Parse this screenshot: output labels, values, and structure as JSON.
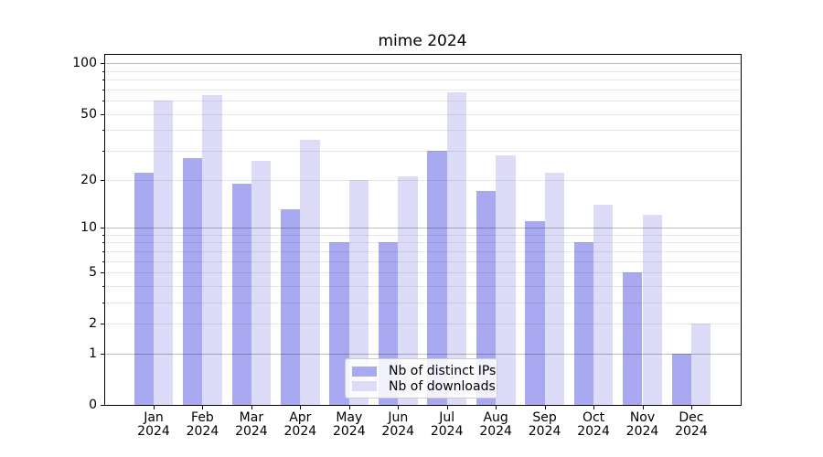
{
  "title": "mime 2024",
  "chart_data": {
    "type": "bar",
    "title": "mime 2024",
    "categories": [
      "Jan",
      "Feb",
      "Mar",
      "Apr",
      "May",
      "Jun",
      "Jul",
      "Aug",
      "Sep",
      "Oct",
      "Nov",
      "Dec"
    ],
    "year_label": "2024",
    "series": [
      {
        "name": "Nb of distinct IPs",
        "color": "#a9a9f2",
        "values": [
          22,
          27,
          19,
          13,
          8,
          8,
          30,
          17,
          11,
          8,
          5,
          1
        ]
      },
      {
        "name": "Nb of downloads",
        "color": "#dcdcf8",
        "values": [
          60,
          65,
          26,
          35,
          20,
          21,
          67,
          28,
          22,
          14,
          12,
          2
        ]
      }
    ],
    "xlabel": "",
    "ylabel": "",
    "yscale": "log10(1+v)",
    "ylim": [
      0,
      110
    ],
    "y_tick_values": [
      0,
      1,
      2,
      5,
      10,
      20,
      50,
      100
    ],
    "y_major_gridlines": [
      1,
      10,
      100
    ],
    "y_minor_gridlines": [
      2,
      3,
      4,
      5,
      6,
      7,
      8,
      9,
      20,
      30,
      40,
      50,
      60,
      70,
      80,
      90
    ],
    "grid": true,
    "legend_position": "inside-bottom-center"
  },
  "legend": {
    "items": [
      {
        "label": "Nb of distinct IPs",
        "color": "#a9a9f2"
      },
      {
        "label": "Nb of downloads",
        "color": "#dcdcf8"
      }
    ]
  },
  "colors": {
    "background": "#ffffff",
    "axis": "#000000",
    "grid_major": "rgba(0,0,0,0.26)",
    "grid_minor": "rgba(0,0,0,0.09)",
    "bar_dark": "#a9a9f2",
    "bar_light": "#dcdcf8"
  }
}
